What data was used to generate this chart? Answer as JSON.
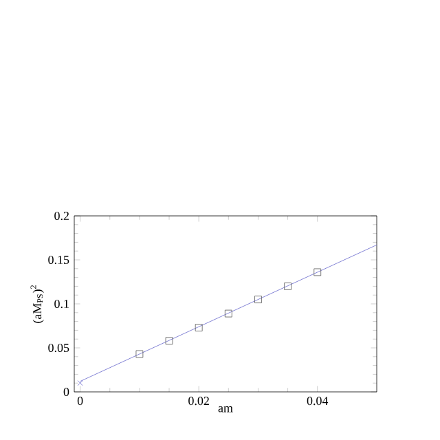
{
  "chart_data": {
    "type": "scatter",
    "xlabel": "am",
    "ylabel": "(aM$_{PS}$)$^{2}$",
    "xlim": [
      -0.001,
      0.05
    ],
    "ylim": [
      0,
      0.2
    ],
    "xticks": [
      0,
      0.02,
      0.04
    ],
    "yticks": [
      0,
      0.05,
      0.1,
      0.15,
      0.2
    ],
    "grid": false,
    "series": [
      {
        "marker": "square",
        "color": "#555555",
        "x": [
          0.01,
          0.015,
          0.02,
          0.025,
          0.03,
          0.035,
          0.04
        ],
        "values": [
          0.043,
          0.058,
          0.073,
          0.089,
          0.105,
          0.12,
          0.136
        ]
      },
      {
        "marker": "cross",
        "color": "#6666cc",
        "x": [
          0
        ],
        "values": [
          0.01
        ]
      },
      {
        "type": "line",
        "marker": "none",
        "line_style": "solid",
        "color": "#6666cc",
        "x": [
          0,
          0.05
        ],
        "values": [
          0.012,
          0.167
        ]
      }
    ]
  }
}
